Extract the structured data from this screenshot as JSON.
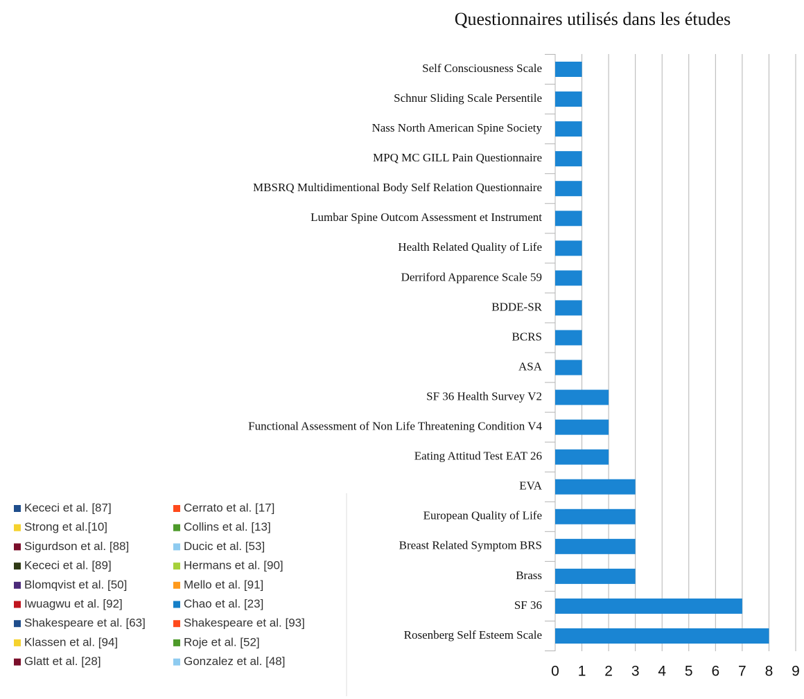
{
  "chart_data": {
    "type": "barh",
    "title": "Questionnaires utilisés dans les études",
    "categories": [
      "Self Consciousness Scale",
      "Schnur Sliding Scale Persentile",
      "Nass North American Spine Society",
      "MPQ MC GILL Pain Questionnaire",
      "MBSRQ Multidimentional Body Self Relation Questionnaire",
      "Lumbar Spine Outcom Assessment et Instrument",
      "Health Related Quality of Life",
      "Derriford Apparence Scale 59",
      "BDDE-SR",
      "BCRS",
      "ASA",
      "SF 36 Health Survey V2",
      "Functional Assessment of Non Life Threatening Condition V4",
      "Eating Attitud Test EAT 26",
      "EVA",
      "European Quality of Life",
      "Breast Related Symptom BRS",
      "Brass",
      "SF 36",
      "Rosenberg Self Esteem Scale"
    ],
    "values": [
      1,
      1,
      1,
      1,
      1,
      1,
      1,
      1,
      1,
      1,
      1,
      2,
      2,
      2,
      3,
      3,
      3,
      3,
      7,
      8
    ],
    "color": "#1a85d3",
    "xlim": [
      0,
      9
    ],
    "xticks": [
      0,
      1,
      2,
      3,
      4,
      5,
      6,
      7,
      8,
      9
    ],
    "grid": true,
    "legend": [
      {
        "name": "Kececi et al. [87]",
        "color": "#1f4e8c"
      },
      {
        "name": "Cerrato et al. [17]",
        "color": "#ff4a1c"
      },
      {
        "name": "Strong et al.[10]",
        "color": "#f5d22e"
      },
      {
        "name": "Collins et al. [13]",
        "color": "#4d9a2a"
      },
      {
        "name": "Sigurdson et al. [88]",
        "color": "#7a0e2a"
      },
      {
        "name": "Ducic et al. [53]",
        "color": "#8ecbf0"
      },
      {
        "name": "Kececi et al. [89]",
        "color": "#2f3a16"
      },
      {
        "name": "Hermans et al. [90]",
        "color": "#a6d13a"
      },
      {
        "name": "Blomqvist et al. [50]",
        "color": "#4b2a7a"
      },
      {
        "name": "Mello et al. [91]",
        "color": "#ff9a1c"
      },
      {
        "name": "Iwuagwu et al. [92]",
        "color": "#c0141e"
      },
      {
        "name": "Chao et al. [23]",
        "color": "#1680c8"
      },
      {
        "name": "Shakespeare et al. [63]",
        "color": "#1f4e8c"
      },
      {
        "name": "Shakespeare et al. [93]",
        "color": "#ff4a1c"
      },
      {
        "name": "Klassen et al. [94]",
        "color": "#f5d22e"
      },
      {
        "name": "Roje et al. [52]",
        "color": "#4d9a2a"
      },
      {
        "name": "Glatt et al. [28]",
        "color": "#7a0e2a"
      },
      {
        "name": "Gonzalez et al. [48]",
        "color": "#8ecbf0"
      }
    ]
  }
}
